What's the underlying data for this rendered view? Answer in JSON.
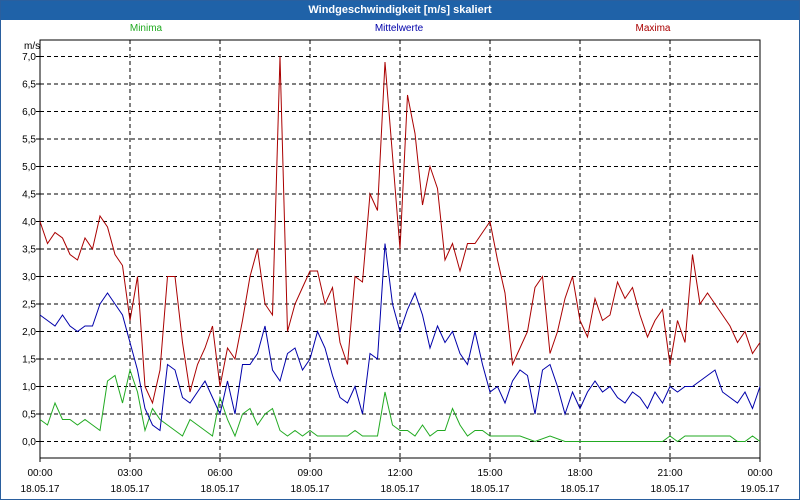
{
  "window": {
    "title": "Windgeschwindigkeit [m/s] skaliert"
  },
  "chart_data": {
    "type": "line",
    "title": "Windgeschwindigkeit [m/s] skaliert",
    "ylabel": "m/s",
    "xlabel": "",
    "ylim": [
      -0.3,
      7.3
    ],
    "yticks": [
      "0,0",
      "0,5",
      "1,0",
      "1,5",
      "2,0",
      "2,5",
      "3,0",
      "3,5",
      "4,0",
      "4,5",
      "5,0",
      "5,5",
      "6,0",
      "6,5",
      "7,0"
    ],
    "xlim": [
      0,
      24
    ],
    "xticks": [
      {
        "time": "00:00",
        "date": "18.05.17"
      },
      {
        "time": "03:00",
        "date": "18.05.17"
      },
      {
        "time": "06:00",
        "date": "18.05.17"
      },
      {
        "time": "09:00",
        "date": "18.05.17"
      },
      {
        "time": "12:00",
        "date": "18.05.17"
      },
      {
        "time": "15:00",
        "date": "18.05.17"
      },
      {
        "time": "18:00",
        "date": "18.05.17"
      },
      {
        "time": "21:00",
        "date": "18.05.17"
      },
      {
        "time": "00:00",
        "date": "19.05.17"
      }
    ],
    "grid": true,
    "legend_position": "top",
    "series": [
      {
        "name": "Minima",
        "color": "#22aa22",
        "x": [
          0,
          0.25,
          0.5,
          0.75,
          1,
          1.25,
          1.5,
          1.75,
          2,
          2.25,
          2.5,
          2.75,
          3,
          3.25,
          3.5,
          3.75,
          4,
          4.25,
          4.5,
          4.75,
          5,
          5.25,
          5.5,
          5.75,
          6,
          6.25,
          6.5,
          6.75,
          7,
          7.25,
          7.5,
          7.75,
          8,
          8.25,
          8.5,
          8.75,
          9,
          9.25,
          9.5,
          9.75,
          10,
          10.25,
          10.5,
          10.75,
          11,
          11.25,
          11.5,
          11.75,
          12,
          12.25,
          12.5,
          12.75,
          13,
          13.25,
          13.5,
          13.75,
          14,
          14.25,
          14.5,
          14.75,
          15,
          15.5,
          16,
          16.5,
          17,
          17.5,
          18,
          18.5,
          19,
          19.5,
          20,
          20.25,
          20.5,
          20.75,
          21,
          21.25,
          21.5,
          22,
          22.5,
          23,
          23.25,
          23.5,
          23.75,
          24
        ],
        "y": [
          0.4,
          0.3,
          0.7,
          0.4,
          0.4,
          0.3,
          0.4,
          0.3,
          0.2,
          1.1,
          1.2,
          0.7,
          1.3,
          0.9,
          0.2,
          0.6,
          0.4,
          0.3,
          0.2,
          0.1,
          0.4,
          0.3,
          0.2,
          0.1,
          0.8,
          0.4,
          0.1,
          0.5,
          0.6,
          0.3,
          0.5,
          0.6,
          0.2,
          0.1,
          0.2,
          0.1,
          0.2,
          0.1,
          0.1,
          0.1,
          0.1,
          0.1,
          0.2,
          0.1,
          0.1,
          0.1,
          0.9,
          0.3,
          0.2,
          0.2,
          0.1,
          0.3,
          0.1,
          0.2,
          0.2,
          0.6,
          0.3,
          0.1,
          0.2,
          0.2,
          0.1,
          0.1,
          0.1,
          0.0,
          0.1,
          0.0,
          0.0,
          0.0,
          0.0,
          0.0,
          0.0,
          0.0,
          0.0,
          0.0,
          0.1,
          0.0,
          0.1,
          0.1,
          0.1,
          0.1,
          0.0,
          0.0,
          0.1,
          0.0
        ]
      },
      {
        "name": "Mittelwerte",
        "color": "#0000aa",
        "x": [
          0,
          0.25,
          0.5,
          0.75,
          1,
          1.25,
          1.5,
          1.75,
          2,
          2.25,
          2.5,
          2.75,
          3,
          3.25,
          3.5,
          3.75,
          4,
          4.25,
          4.5,
          4.75,
          5,
          5.25,
          5.5,
          5.75,
          6,
          6.25,
          6.5,
          6.75,
          7,
          7.25,
          7.5,
          7.75,
          8,
          8.25,
          8.5,
          8.75,
          9,
          9.25,
          9.5,
          9.75,
          10,
          10.25,
          10.5,
          10.75,
          11,
          11.25,
          11.5,
          11.75,
          12,
          12.25,
          12.5,
          12.75,
          13,
          13.25,
          13.5,
          13.75,
          14,
          14.25,
          14.5,
          14.75,
          15,
          15.25,
          15.5,
          15.75,
          16,
          16.25,
          16.5,
          16.75,
          17,
          17.25,
          17.5,
          17.75,
          18,
          18.25,
          18.5,
          18.75,
          19,
          19.25,
          19.5,
          19.75,
          20,
          20.25,
          20.5,
          20.75,
          21,
          21.25,
          21.5,
          21.75,
          22,
          22.25,
          22.5,
          22.75,
          23,
          23.25,
          23.5,
          23.75,
          24
        ],
        "y": [
          2.3,
          2.2,
          2.1,
          2.3,
          2.1,
          2.0,
          2.1,
          2.1,
          2.5,
          2.7,
          2.5,
          2.3,
          1.8,
          1.3,
          0.6,
          0.3,
          0.2,
          1.4,
          1.3,
          0.8,
          0.7,
          0.9,
          1.1,
          0.8,
          0.5,
          1.1,
          0.5,
          1.4,
          1.4,
          1.6,
          2.1,
          1.3,
          1.1,
          1.6,
          1.7,
          1.3,
          1.5,
          2.0,
          1.7,
          1.2,
          0.8,
          0.7,
          1.0,
          0.5,
          1.6,
          1.5,
          3.6,
          2.5,
          2.0,
          2.4,
          2.7,
          2.3,
          1.7,
          2.1,
          1.8,
          2.0,
          1.6,
          1.4,
          2.0,
          1.4,
          0.9,
          1.0,
          0.7,
          1.1,
          1.3,
          1.2,
          0.5,
          1.3,
          1.4,
          1.0,
          0.5,
          0.9,
          0.6,
          0.9,
          1.1,
          0.9,
          1.0,
          0.8,
          0.7,
          0.9,
          0.8,
          0.6,
          0.9,
          0.7,
          1.0,
          0.9,
          1.0,
          1.0,
          1.1,
          1.2,
          1.3,
          0.9,
          0.8,
          0.7,
          0.9,
          0.6,
          1.0
        ]
      },
      {
        "name": "Maxima",
        "color": "#aa0000",
        "x": [
          0,
          0.25,
          0.5,
          0.75,
          1,
          1.25,
          1.5,
          1.75,
          2,
          2.25,
          2.5,
          2.75,
          3,
          3.25,
          3.5,
          3.75,
          4,
          4.25,
          4.5,
          4.75,
          5,
          5.25,
          5.5,
          5.75,
          6,
          6.25,
          6.5,
          6.75,
          7,
          7.25,
          7.5,
          7.75,
          8,
          8.25,
          8.5,
          8.75,
          9,
          9.25,
          9.5,
          9.75,
          10,
          10.25,
          10.5,
          10.75,
          11,
          11.25,
          11.5,
          11.75,
          12,
          12.25,
          12.5,
          12.75,
          13,
          13.25,
          13.5,
          13.75,
          14,
          14.25,
          14.5,
          14.75,
          15,
          15.25,
          15.5,
          15.75,
          16,
          16.25,
          16.5,
          16.75,
          17,
          17.25,
          17.5,
          17.75,
          18,
          18.25,
          18.5,
          18.75,
          19,
          19.25,
          19.5,
          19.75,
          20,
          20.25,
          20.5,
          20.75,
          21,
          21.25,
          21.5,
          21.75,
          22,
          22.25,
          22.5,
          22.75,
          23,
          23.25,
          23.5,
          23.75,
          24
        ],
        "y": [
          4.0,
          3.6,
          3.8,
          3.7,
          3.4,
          3.3,
          3.7,
          3.5,
          4.1,
          3.9,
          3.4,
          3.2,
          2.2,
          3.0,
          1.0,
          0.7,
          1.3,
          3.0,
          3.0,
          1.8,
          0.9,
          1.4,
          1.7,
          2.1,
          1.0,
          1.7,
          1.5,
          2.2,
          3.0,
          3.5,
          2.5,
          2.3,
          7.0,
          2.0,
          2.5,
          2.8,
          3.1,
          3.1,
          2.5,
          2.8,
          1.8,
          1.4,
          3.0,
          2.9,
          4.5,
          4.2,
          6.9,
          5.2,
          3.5,
          6.3,
          5.6,
          4.3,
          5.0,
          4.6,
          3.3,
          3.6,
          3.1,
          3.6,
          3.6,
          3.8,
          4.0,
          3.3,
          2.7,
          1.4,
          1.7,
          2.0,
          2.8,
          3.0,
          1.6,
          2.0,
          2.6,
          3.0,
          2.2,
          1.9,
          2.6,
          2.2,
          2.3,
          2.9,
          2.6,
          2.8,
          2.3,
          1.9,
          2.2,
          2.4,
          1.4,
          2.2,
          1.8,
          3.4,
          2.5,
          2.7,
          2.5,
          2.3,
          2.1,
          1.8,
          2.0,
          1.6,
          1.8
        ]
      }
    ]
  }
}
